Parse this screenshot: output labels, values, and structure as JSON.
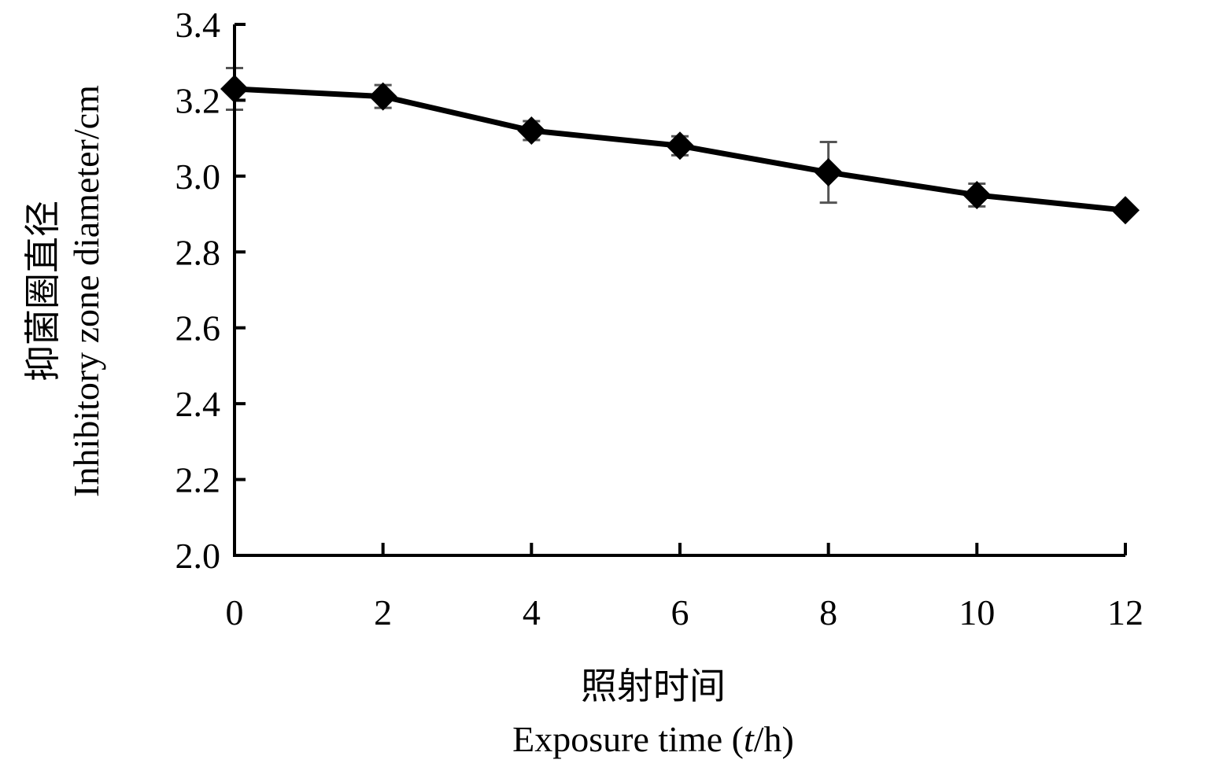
{
  "chart_data": {
    "type": "line",
    "x": [
      0,
      2,
      4,
      6,
      8,
      10,
      12
    ],
    "series": [
      {
        "values": [
          3.23,
          3.21,
          3.12,
          3.08,
          3.01,
          2.95,
          2.91
        ],
        "error": [
          0.055,
          0.03,
          0.025,
          0.025,
          0.08,
          0.03,
          0.0
        ],
        "color": "#000000",
        "marker": "diamond"
      }
    ],
    "xlim": [
      0,
      12
    ],
    "ylim": [
      2.0,
      3.4
    ],
    "xticks": [
      "0",
      "2",
      "4",
      "6",
      "8",
      "10",
      "12"
    ],
    "yticks": [
      "2.0",
      "2.2",
      "2.4",
      "2.6",
      "2.8",
      "3.0",
      "3.2",
      "3.4"
    ],
    "xlabel_cn": "照射时间",
    "xlabel_en_prefix": "Exposure time (",
    "xlabel_en_var": "t",
    "xlabel_en_suffix": "/h)",
    "ylabel_cn": "抑菌圈直径",
    "ylabel_en": "Inhibitory zone diameter/cm",
    "grid": false,
    "legend": "none"
  }
}
